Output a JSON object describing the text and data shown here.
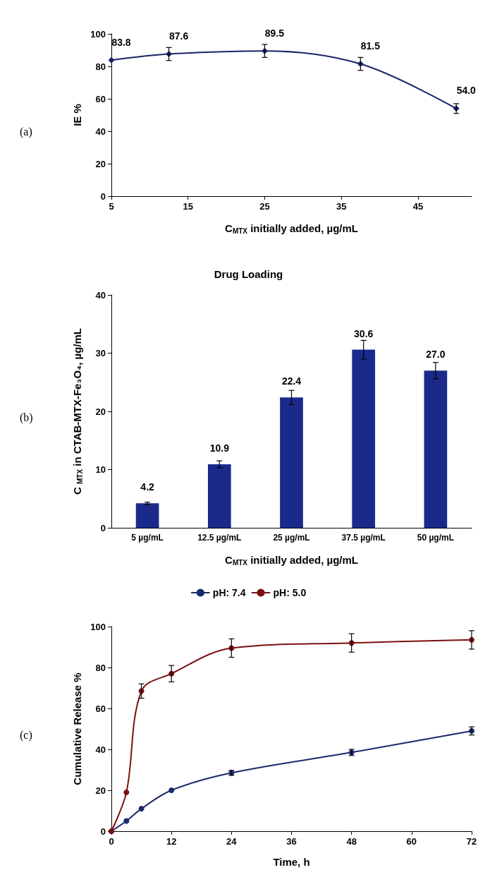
{
  "chart_data": [
    {
      "type": "line",
      "ylabel": "IE %",
      "xlabel": "C$_{MTX}$ initially added, µg/mL",
      "annotations": [
        "(a)"
      ],
      "x": [
        5,
        12.5,
        25,
        37.5,
        50
      ],
      "values": [
        83.8,
        87.6,
        89.5,
        81.5,
        54.0
      ],
      "value_labels": [
        "83.8",
        "87.6",
        "89.5",
        "81.5",
        "54.0"
      ],
      "errors": [
        null,
        4,
        4,
        4,
        3
      ],
      "color": "#1a2466",
      "marker": "diamond",
      "xlim": [
        5,
        52
      ],
      "xticks": [
        5,
        15,
        25,
        35,
        45
      ],
      "ylim": [
        0,
        100
      ],
      "yticks": [
        0,
        20,
        40,
        60,
        80,
        100
      ]
    },
    {
      "type": "bar",
      "title": "Drug Loading",
      "ylabel": "C $_{MTX}$ in CTAB-MTX-Fe₃O₄, µg/mL",
      "xlabel": "C$_{MTX}$ initially added, µg/mL",
      "annotations": [
        "(b)"
      ],
      "categories": [
        "5 µg/mL",
        "12.5 µg/mL",
        "25 µg/mL",
        "37.5 µg/mL",
        "50 µg/mL"
      ],
      "values": [
        4.2,
        10.9,
        22.4,
        30.6,
        27.0
      ],
      "value_labels": [
        "4.2",
        "10.9",
        "22.4",
        "30.6",
        "27.0"
      ],
      "errors": [
        0.2,
        0.6,
        1.2,
        1.6,
        1.4
      ],
      "color": "#1b2a8a",
      "ylim": [
        0,
        40
      ],
      "yticks": [
        0,
        10,
        20,
        30,
        40
      ]
    },
    {
      "type": "line",
      "ylabel": "Cumulative Release %",
      "xlabel": "Time, h",
      "annotations": [
        "(c)"
      ],
      "legend": "top",
      "marker": "circle",
      "series": [
        {
          "name": "pH: 7.4",
          "color": "#1a2a6c",
          "x": [
            0,
            3,
            6,
            12,
            24,
            48,
            72
          ],
          "values": [
            0,
            5,
            11,
            20,
            28.5,
            38.5,
            49
          ],
          "errors": [
            null,
            null,
            null,
            null,
            1.2,
            1.5,
            2
          ]
        },
        {
          "name": "pH: 5.0",
          "color": "#7b1010",
          "x": [
            0,
            3,
            6,
            12,
            24,
            48,
            72
          ],
          "values": [
            0,
            19,
            68.5,
            77,
            89.5,
            92,
            93.5
          ],
          "errors": [
            null,
            null,
            3.5,
            4,
            4.5,
            4.5,
            4.5
          ]
        }
      ],
      "xlim": [
        0,
        72
      ],
      "xticks": [
        0,
        12,
        24,
        36,
        48,
        60,
        72
      ],
      "ylim": [
        0,
        100
      ],
      "yticks": [
        0,
        20,
        40,
        60,
        80,
        100
      ]
    }
  ]
}
